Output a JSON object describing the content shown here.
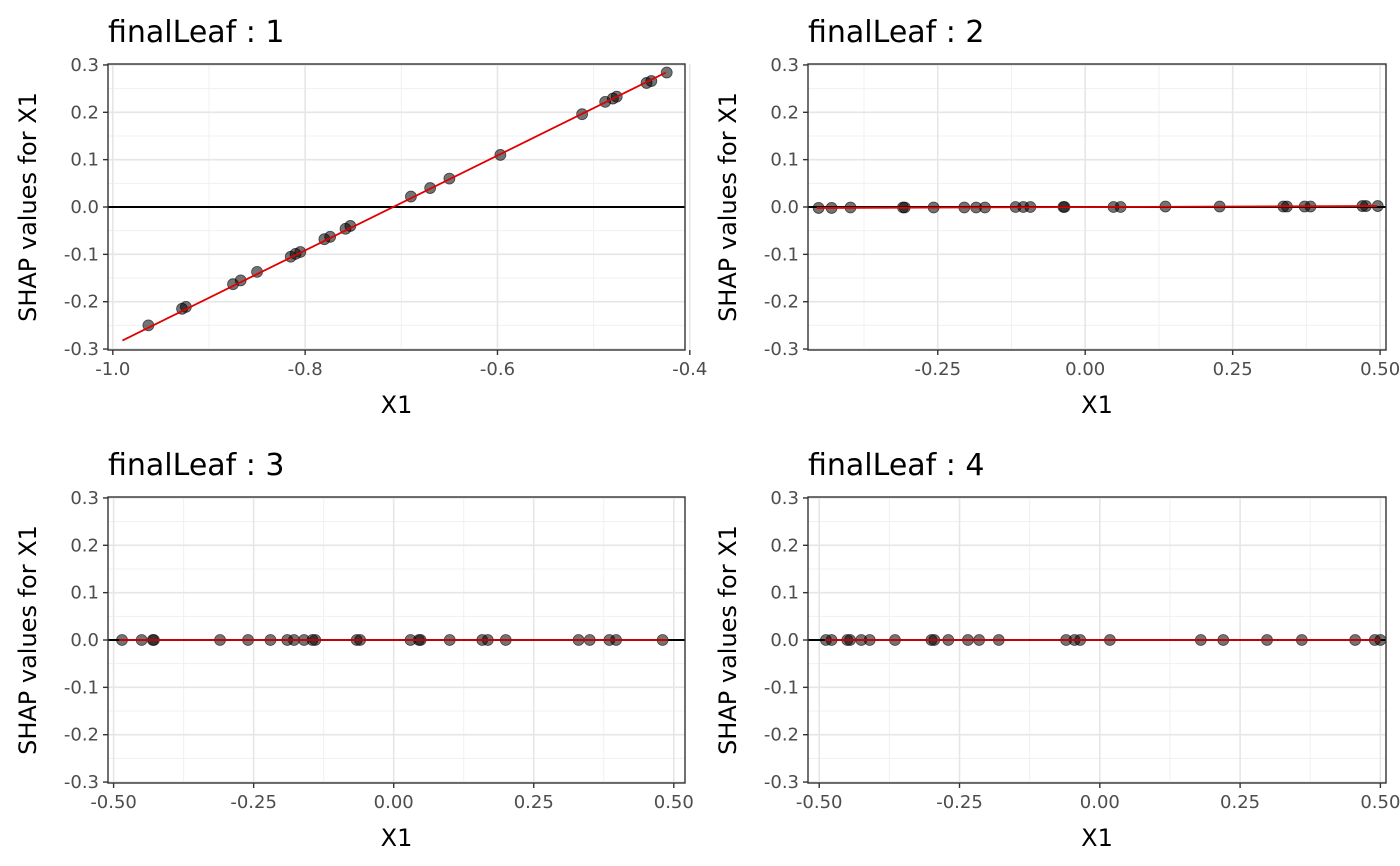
{
  "chart_data": [
    {
      "type": "scatter",
      "title": "finalLeaf : 1",
      "xlabel": "X1",
      "ylabel": "SHAP values for X1",
      "xlim": [
        -1.005,
        -0.405
      ],
      "ylim": [
        -0.302,
        0.302
      ],
      "xticks": [
        -1.0,
        -0.8,
        -0.6,
        -0.4
      ],
      "xtick_labels": [
        "-1.0",
        "-0.8",
        "-0.6",
        "-0.4"
      ],
      "yticks": [
        -0.3,
        -0.2,
        -0.1,
        0.0,
        0.1,
        0.2,
        0.3
      ],
      "ytick_labels": [
        "-0.3",
        "-0.2",
        "-0.1",
        "0.0",
        "0.1",
        "0.2",
        "0.3"
      ],
      "grid": true,
      "hline": 0,
      "fit_line": {
        "x": [
          -0.99,
          -0.425
        ],
        "y": [
          -0.282,
          0.284
        ]
      },
      "points": {
        "x": [
          -0.963,
          -0.928,
          -0.924,
          -0.875,
          -0.867,
          -0.85,
          -0.815,
          -0.81,
          -0.805,
          -0.78,
          -0.774,
          -0.758,
          -0.753,
          -0.69,
          -0.67,
          -0.65,
          -0.597,
          -0.512,
          -0.488,
          -0.48,
          -0.476,
          -0.445,
          -0.44,
          -0.424
        ],
        "y": [
          -0.25,
          -0.215,
          -0.211,
          -0.163,
          -0.155,
          -0.137,
          -0.105,
          -0.099,
          -0.095,
          -0.068,
          -0.063,
          -0.046,
          -0.04,
          0.022,
          0.04,
          0.06,
          0.11,
          0.196,
          0.222,
          0.229,
          0.233,
          0.262,
          0.266,
          0.284
        ]
      }
    },
    {
      "type": "scatter",
      "title": "finalLeaf : 2",
      "xlabel": "X1",
      "ylabel": "SHAP values for X1",
      "xlim": [
        -0.47,
        0.51
      ],
      "ylim": [
        -0.302,
        0.302
      ],
      "xticks": [
        -0.25,
        0.0,
        0.25,
        0.5
      ],
      "xtick_labels": [
        "-0.25",
        "0.00",
        "0.25",
        "0.50"
      ],
      "yticks": [
        -0.3,
        -0.2,
        -0.1,
        0.0,
        0.1,
        0.2,
        0.3
      ],
      "ytick_labels": [
        "-0.3",
        "-0.2",
        "-0.1",
        "0.0",
        "0.1",
        "0.2",
        "0.3"
      ],
      "grid": true,
      "hline": 0,
      "fit_line": {
        "x": [
          -0.455,
          0.495
        ],
        "y": [
          -0.002,
          0.002
        ]
      },
      "points": {
        "x": [
          -0.452,
          -0.43,
          -0.398,
          -0.309,
          -0.306,
          -0.257,
          -0.205,
          -0.185,
          -0.17,
          -0.118,
          -0.105,
          -0.093,
          -0.037,
          -0.035,
          0.048,
          0.06,
          0.136,
          0.228,
          0.336,
          0.342,
          0.372,
          0.382,
          0.47,
          0.476,
          0.496
        ],
        "y": [
          -0.002,
          -0.002,
          -0.001,
          -0.001,
          -0.001,
          -0.001,
          -0.001,
          -0.001,
          -0.001,
          0.0,
          0.0,
          0.0,
          0.0,
          0.0,
          0.0,
          0.0,
          0.001,
          0.001,
          0.001,
          0.001,
          0.001,
          0.001,
          0.002,
          0.002,
          0.002
        ]
      }
    },
    {
      "type": "scatter",
      "title": "finalLeaf : 3",
      "xlabel": "X1",
      "ylabel": "SHAP values for X1",
      "xlim": [
        -0.51,
        0.52
      ],
      "ylim": [
        -0.302,
        0.302
      ],
      "xticks": [
        -0.5,
        -0.25,
        0.0,
        0.25,
        0.5
      ],
      "xtick_labels": [
        "-0.50",
        "-0.25",
        "0.00",
        "0.25",
        "0.50"
      ],
      "yticks": [
        -0.3,
        -0.2,
        -0.1,
        0.0,
        0.1,
        0.2,
        0.3
      ],
      "ytick_labels": [
        "-0.3",
        "-0.2",
        "-0.1",
        "0.0",
        "0.1",
        "0.2",
        "0.3"
      ],
      "grid": true,
      "hline": 0,
      "fit_line": {
        "x": [
          -0.49,
          0.49
        ],
        "y": [
          0.0,
          0.0
        ]
      },
      "points": {
        "x": [
          -0.485,
          -0.45,
          -0.43,
          -0.428,
          -0.31,
          -0.26,
          -0.22,
          -0.19,
          -0.178,
          -0.16,
          -0.145,
          -0.14,
          -0.066,
          -0.06,
          0.03,
          0.045,
          0.048,
          0.1,
          0.158,
          0.168,
          0.2,
          0.33,
          0.35,
          0.385,
          0.397,
          0.48
        ],
        "y": [
          0.0,
          0.0,
          0.0,
          0.0,
          0.0,
          0.0,
          0.0,
          0.0,
          0.0,
          0.0,
          0.0,
          0.0,
          0.0,
          0.0,
          0.0,
          0.0,
          0.0,
          0.0,
          0.0,
          0.0,
          0.0,
          0.0,
          0.0,
          0.0,
          0.0,
          0.0
        ]
      }
    },
    {
      "type": "scatter",
      "title": "finalLeaf : 4",
      "xlabel": "X1",
      "ylabel": "SHAP values for X1",
      "xlim": [
        -0.52,
        0.51
      ],
      "ylim": [
        -0.302,
        0.302
      ],
      "xticks": [
        -0.5,
        -0.25,
        0.0,
        0.25,
        0.5
      ],
      "xtick_labels": [
        "-0.50",
        "-0.25",
        "0.00",
        "0.25",
        "0.50"
      ],
      "yticks": [
        -0.3,
        -0.2,
        -0.1,
        0.0,
        0.1,
        0.2,
        0.3
      ],
      "ytick_labels": [
        "-0.3",
        "-0.2",
        "-0.1",
        "0.0",
        "0.1",
        "0.2",
        "0.3"
      ],
      "grid": true,
      "hline": 0,
      "fit_line": {
        "x": [
          -0.49,
          0.5
        ],
        "y": [
          0.0,
          0.0
        ]
      },
      "points": {
        "x": [
          -0.488,
          -0.478,
          -0.45,
          -0.445,
          -0.425,
          -0.41,
          -0.365,
          -0.3,
          -0.295,
          -0.27,
          -0.235,
          -0.215,
          -0.18,
          -0.06,
          -0.045,
          -0.035,
          0.018,
          0.18,
          0.22,
          0.298,
          0.36,
          0.455,
          0.49,
          0.5
        ],
        "y": [
          0.0,
          0.0,
          0.0,
          0.0,
          0.0,
          0.0,
          0.0,
          0.0,
          0.0,
          0.0,
          0.0,
          0.0,
          0.0,
          0.0,
          0.0,
          0.0,
          0.0,
          0.0,
          0.0,
          0.0,
          0.0,
          0.0,
          0.0,
          0.0
        ]
      }
    }
  ]
}
